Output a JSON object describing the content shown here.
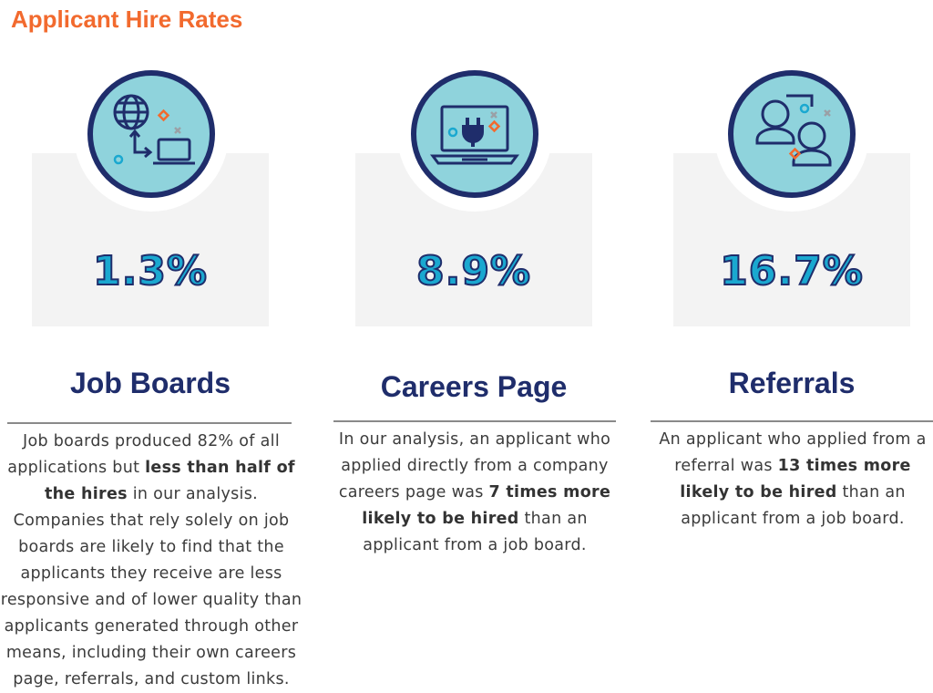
{
  "title": "Applicant Hire Rates",
  "colors": {
    "accent": "#f26a2e",
    "navy": "#1f2d6b",
    "teal": "#8fd3dc",
    "cyan": "#1aa8d0",
    "card": "#f3f3f3"
  },
  "columns": [
    {
      "icon": "globe-laptop-icon",
      "percent": "1.3%",
      "heading": "Job Boards",
      "desc": {
        "pre": "Job boards produced 82% of all applications but ",
        "bold": "less than half of the hires",
        "post": " in our analysis. Companies that rely solely on job boards are likely to find that the applicants they receive are less responsive and of lower quality than applicants generated through other means, including their own careers page, referrals, and custom links."
      }
    },
    {
      "icon": "laptop-plug-icon",
      "percent": "8.9%",
      "heading": "Careers Page",
      "desc": {
        "pre": "In our analysis, an applicant who applied directly from a company careers page was ",
        "bold": "7 times more likely to be hired",
        "post": " than an applicant from a job board."
      }
    },
    {
      "icon": "people-referral-icon",
      "percent": "16.7%",
      "heading": "Referrals",
      "desc": {
        "pre": "An applicant who applied from a referral was ",
        "bold": "13 times more likely to be hired",
        "post": " than an applicant from a job board."
      }
    }
  ]
}
